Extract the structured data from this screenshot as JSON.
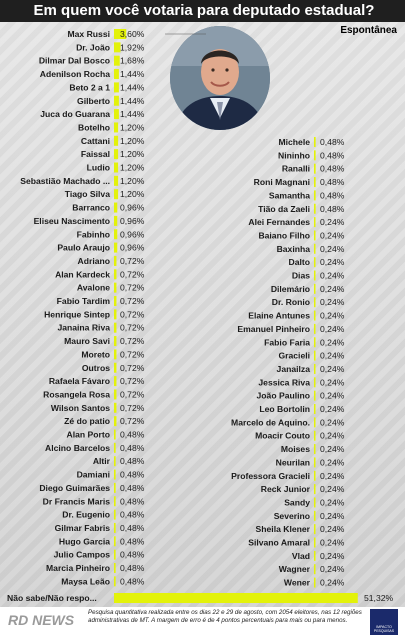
{
  "header": {
    "title": "Em quem você votaria para deputado estadual?",
    "subtitle": "Espontânea"
  },
  "chart_data": {
    "type": "bar",
    "title": "Em quem você votaria para deputado estadual?",
    "subtitle": "Espontânea",
    "unit": "%",
    "left_column": [
      {
        "name": "Max Russi",
        "label": "3,60%",
        "value": 3.6
      },
      {
        "name": "Dr. João",
        "label": "1,92%",
        "value": 1.92
      },
      {
        "name": "Dilmar Dal Bosco",
        "label": "1,68%",
        "value": 1.68
      },
      {
        "name": "Adenilson Rocha",
        "label": "1,44%",
        "value": 1.44
      },
      {
        "name": "Beto 2 a 1",
        "label": "1,44%",
        "value": 1.44
      },
      {
        "name": "Gilberto",
        "label": "1,44%",
        "value": 1.44
      },
      {
        "name": "Juca do Guarana",
        "label": "1,44%",
        "value": 1.44
      },
      {
        "name": "Botelho",
        "label": "1,20%",
        "value": 1.2
      },
      {
        "name": "Cattani",
        "label": "1,20%",
        "value": 1.2
      },
      {
        "name": "Faissal",
        "label": "1,20%",
        "value": 1.2
      },
      {
        "name": "Ludio",
        "label": "1,20%",
        "value": 1.2
      },
      {
        "name": "Sebastião Machado ...",
        "label": "1,20%",
        "value": 1.2
      },
      {
        "name": "Tiago Silva",
        "label": "1,20%",
        "value": 1.2
      },
      {
        "name": "Barranco",
        "label": "0,96%",
        "value": 0.96
      },
      {
        "name": "Eliseu Nascimento",
        "label": "0,96%",
        "value": 0.96
      },
      {
        "name": "Fabinho",
        "label": "0,96%",
        "value": 0.96
      },
      {
        "name": "Paulo Araujo",
        "label": "0,96%",
        "value": 0.96
      },
      {
        "name": "Adriano",
        "label": "0,72%",
        "value": 0.72
      },
      {
        "name": "Alan Kardeck",
        "label": "0,72%",
        "value": 0.72
      },
      {
        "name": "Avalone",
        "label": "0,72%",
        "value": 0.72
      },
      {
        "name": "Fabio Tardim",
        "label": "0,72%",
        "value": 0.72
      },
      {
        "name": "Henrique Sintep",
        "label": "0,72%",
        "value": 0.72
      },
      {
        "name": "Janaina Riva",
        "label": "0,72%",
        "value": 0.72
      },
      {
        "name": "Mauro Savi",
        "label": "0,72%",
        "value": 0.72
      },
      {
        "name": "Moreto",
        "label": "0,72%",
        "value": 0.72
      },
      {
        "name": "Outros",
        "label": "0,72%",
        "value": 0.72
      },
      {
        "name": "Rafaela Fávaro",
        "label": "0,72%",
        "value": 0.72
      },
      {
        "name": "Rosangela Rosa",
        "label": "0,72%",
        "value": 0.72
      },
      {
        "name": "Wilson Santos",
        "label": "0,72%",
        "value": 0.72
      },
      {
        "name": "Zé do patio",
        "label": "0,72%",
        "value": 0.72
      },
      {
        "name": "Alan Porto",
        "label": "0,48%",
        "value": 0.48
      },
      {
        "name": "Alcino Barcelos",
        "label": "0,48%",
        "value": 0.48
      },
      {
        "name": "Altir",
        "label": "0,48%",
        "value": 0.48
      },
      {
        "name": "Damiani",
        "label": "0,48%",
        "value": 0.48
      },
      {
        "name": "Diego Guimarães",
        "label": "0,48%",
        "value": 0.48
      },
      {
        "name": "Dr Francis Maris",
        "label": "0,48%",
        "value": 0.48
      },
      {
        "name": "Dr. Eugenio",
        "label": "0,48%",
        "value": 0.48
      },
      {
        "name": "Gilmar Fabris",
        "label": "0,48%",
        "value": 0.48
      },
      {
        "name": "Hugo Garcia",
        "label": "0,48%",
        "value": 0.48
      },
      {
        "name": "Julio Campos",
        "label": "0,48%",
        "value": 0.48
      },
      {
        "name": "Marcia Pinheiro",
        "label": "0,48%",
        "value": 0.48
      },
      {
        "name": "Maysa Leão",
        "label": "0,48%",
        "value": 0.48
      }
    ],
    "right_column": [
      {
        "name": "Michele",
        "label": "0,48%",
        "value": 0.48
      },
      {
        "name": "Nininho",
        "label": "0,48%",
        "value": 0.48
      },
      {
        "name": "Ranalli",
        "label": "0,48%",
        "value": 0.48
      },
      {
        "name": "Roni Magnani",
        "label": "0,48%",
        "value": 0.48
      },
      {
        "name": "Samantha",
        "label": "0,48%",
        "value": 0.48
      },
      {
        "name": "Tião da Zaeli",
        "label": "0,48%",
        "value": 0.48
      },
      {
        "name": "Alei Fernandes",
        "label": "0,24%",
        "value": 0.24
      },
      {
        "name": "Baiano Filho",
        "label": "0,24%",
        "value": 0.24
      },
      {
        "name": "Baxinha",
        "label": "0,24%",
        "value": 0.24
      },
      {
        "name": "Dalto",
        "label": "0,24%",
        "value": 0.24
      },
      {
        "name": "Dias",
        "label": "0,24%",
        "value": 0.24
      },
      {
        "name": "Dilemário",
        "label": "0,24%",
        "value": 0.24
      },
      {
        "name": "Dr. Ronio",
        "label": "0,24%",
        "value": 0.24
      },
      {
        "name": "Elaine Antunes",
        "label": "0,24%",
        "value": 0.24
      },
      {
        "name": "Emanuel Pinheiro",
        "label": "0,24%",
        "value": 0.24
      },
      {
        "name": "Fabio Faria",
        "label": "0,24%",
        "value": 0.24
      },
      {
        "name": "Gracieli",
        "label": "0,24%",
        "value": 0.24
      },
      {
        "name": "Janailza",
        "label": "0,24%",
        "value": 0.24
      },
      {
        "name": "Jessica Riva",
        "label": "0,24%",
        "value": 0.24
      },
      {
        "name": "João Paulino",
        "label": "0,24%",
        "value": 0.24
      },
      {
        "name": "Leo Bortolin",
        "label": "0,24%",
        "value": 0.24
      },
      {
        "name": "Marcelo de Aquino.",
        "label": "0,24%",
        "value": 0.24
      },
      {
        "name": "Moacir Couto",
        "label": "0,24%",
        "value": 0.24
      },
      {
        "name": "Moises",
        "label": "0,24%",
        "value": 0.24
      },
      {
        "name": "Neurilan",
        "label": "0,24%",
        "value": 0.24
      },
      {
        "name": "Professora Gracieli",
        "label": "0,24%",
        "value": 0.24
      },
      {
        "name": "Reck Junior",
        "label": "0,24%",
        "value": 0.24
      },
      {
        "name": "Sandy",
        "label": "0,24%",
        "value": 0.24
      },
      {
        "name": "Severino",
        "label": "0,24%",
        "value": 0.24
      },
      {
        "name": "Sheila Klener",
        "label": "0,24%",
        "value": 0.24
      },
      {
        "name": "Silvano Amaral",
        "label": "0,24%",
        "value": 0.24
      },
      {
        "name": "Vlad",
        "label": "0,24%",
        "value": 0.24
      },
      {
        "name": "Wagner",
        "label": "0,24%",
        "value": 0.24
      },
      {
        "name": "Wener",
        "label": "0,24%",
        "value": 0.24
      }
    ],
    "bottom": {
      "name": "Não sabe/Não respo...",
      "label": "51,32%",
      "value": 51.32
    },
    "bar_color": "#e3f20a"
  },
  "footer": {
    "note": "Pesquisa quantitativa realizada entre os dias 22 e 29 de agosto, com 2054 eleitores, nas 12 regiões administrativas de MT. A margem de erro é de 4 pontos percentuais para mais ou para menos.",
    "logo_left": "RD NEWS",
    "logo_right": "IMPACTO PESQUISAS"
  }
}
